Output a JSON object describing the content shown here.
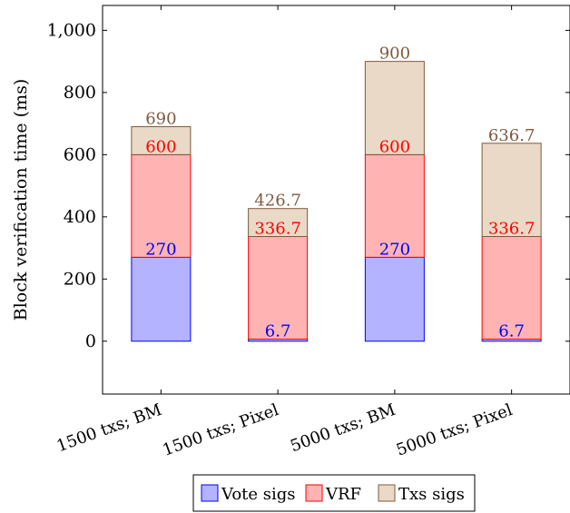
{
  "chart_data": {
    "type": "bar",
    "stacked": true,
    "ylabel": "Block verification time (ms)",
    "xlabel": "",
    "ylim": [
      -170,
      1080
    ],
    "yticks": [
      0,
      200,
      400,
      600,
      800,
      1000
    ],
    "ytick_labels": [
      "0",
      "200",
      "400",
      "600",
      "800",
      "1,000"
    ],
    "categories": [
      "1500 txs; BM",
      "1500 txs; Pixel",
      "5000 txs; BM",
      "5000 txs; Pixel"
    ],
    "series": [
      {
        "name": "Vote sigs",
        "values": [
          270,
          6.7,
          270,
          6.7
        ],
        "labels": [
          "270",
          "6.7",
          "270",
          "6.7"
        ],
        "fill": "#b3b3ff",
        "stroke": "#0000ff",
        "label_color": "#0000ff"
      },
      {
        "name": "VRF",
        "values": [
          330,
          330,
          330,
          330
        ],
        "labels": [
          "600",
          "336.7",
          "600",
          "336.7"
        ],
        "fill": "#ffb3b3",
        "stroke": "#ff0000",
        "label_color": "#ff0000"
      },
      {
        "name": "Txs sigs",
        "values": [
          90,
          90,
          300,
          300
        ],
        "labels": [
          "690",
          "426.7",
          "900",
          "636.7"
        ],
        "fill": "#ead9c6",
        "stroke": "#7f5a3e",
        "label_color": "#7f5a3e"
      }
    ],
    "grid": false,
    "legend_position": "bottom"
  }
}
